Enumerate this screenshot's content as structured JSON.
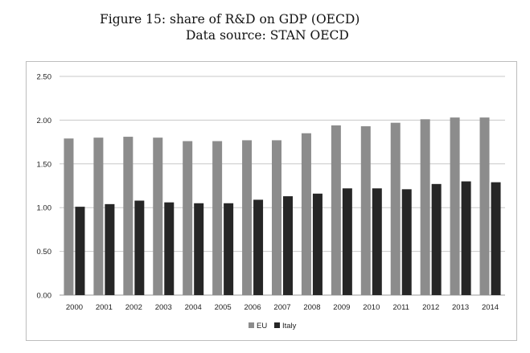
{
  "caption": {
    "line1": "Figure 15: share of R&D on GDP (OECD)",
    "line2": "Data source: STAN OECD"
  },
  "chart_data": {
    "type": "bar",
    "title": "",
    "xlabel": "",
    "ylabel": "",
    "categories": [
      "2000",
      "2001",
      "2002",
      "2003",
      "2004",
      "2005",
      "2006",
      "2007",
      "2008",
      "2009",
      "2010",
      "2011",
      "2012",
      "2013",
      "2014"
    ],
    "series": [
      {
        "name": "EU",
        "color": "#8c8c8c",
        "values": [
          1.79,
          1.8,
          1.81,
          1.8,
          1.76,
          1.76,
          1.77,
          1.77,
          1.85,
          1.94,
          1.93,
          1.97,
          2.01,
          2.03,
          2.03
        ]
      },
      {
        "name": "Italy",
        "color": "#262626",
        "values": [
          1.01,
          1.04,
          1.08,
          1.06,
          1.05,
          1.05,
          1.09,
          1.13,
          1.16,
          1.22,
          1.22,
          1.21,
          1.27,
          1.3,
          1.29
        ]
      }
    ],
    "ylim": [
      0,
      2.5
    ],
    "yticks": [
      "0.00",
      "0.50",
      "1.00",
      "1.50",
      "2.00",
      "2.50"
    ],
    "grid": true,
    "legend_position": "bottom-center"
  }
}
